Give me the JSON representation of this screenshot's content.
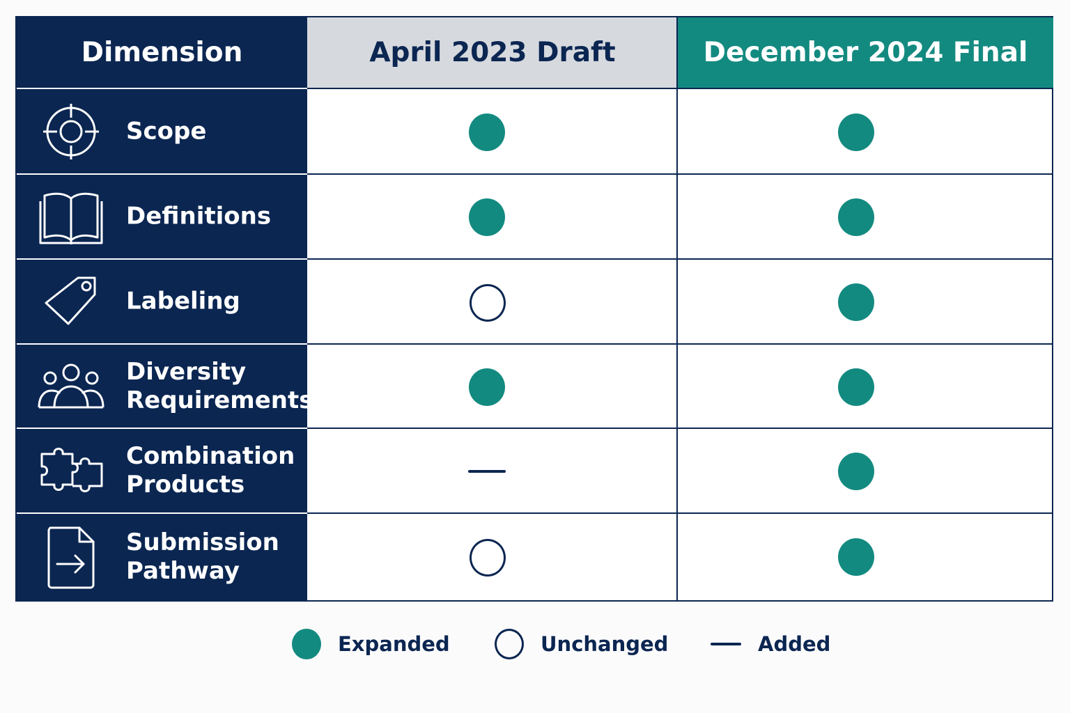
{
  "header": {
    "dimension": "Dimension",
    "col_a": "April 2023 Draft",
    "col_b": "December 2024 Final"
  },
  "colors": {
    "navy": "#0b2651",
    "teal": "#138a80",
    "header_gray": "#d6d9de"
  },
  "rows": [
    {
      "label": "Scope",
      "icon": "target-icon",
      "april_2023": "expanded",
      "december_2024": "expanded"
    },
    {
      "label": "Definitions",
      "icon": "book-icon",
      "april_2023": "expanded",
      "december_2024": "expanded"
    },
    {
      "label": "Labeling",
      "icon": "tag-icon",
      "april_2023": "unchanged",
      "december_2024": "expanded"
    },
    {
      "label": "Diversity Requirements",
      "icon": "people-icon",
      "april_2023": "expanded",
      "december_2024": "expanded"
    },
    {
      "label": "Combination Products",
      "icon": "puzzle-icon",
      "april_2023": "added",
      "december_2024": "expanded"
    },
    {
      "label": "Submission Pathway",
      "icon": "document-arrow-icon",
      "april_2023": "unchanged",
      "december_2024": "expanded"
    }
  ],
  "legend": [
    {
      "symbol": "expanded",
      "label": "Expanded"
    },
    {
      "symbol": "unchanged",
      "label": "Unchanged"
    },
    {
      "symbol": "added",
      "label": "Added"
    }
  ]
}
